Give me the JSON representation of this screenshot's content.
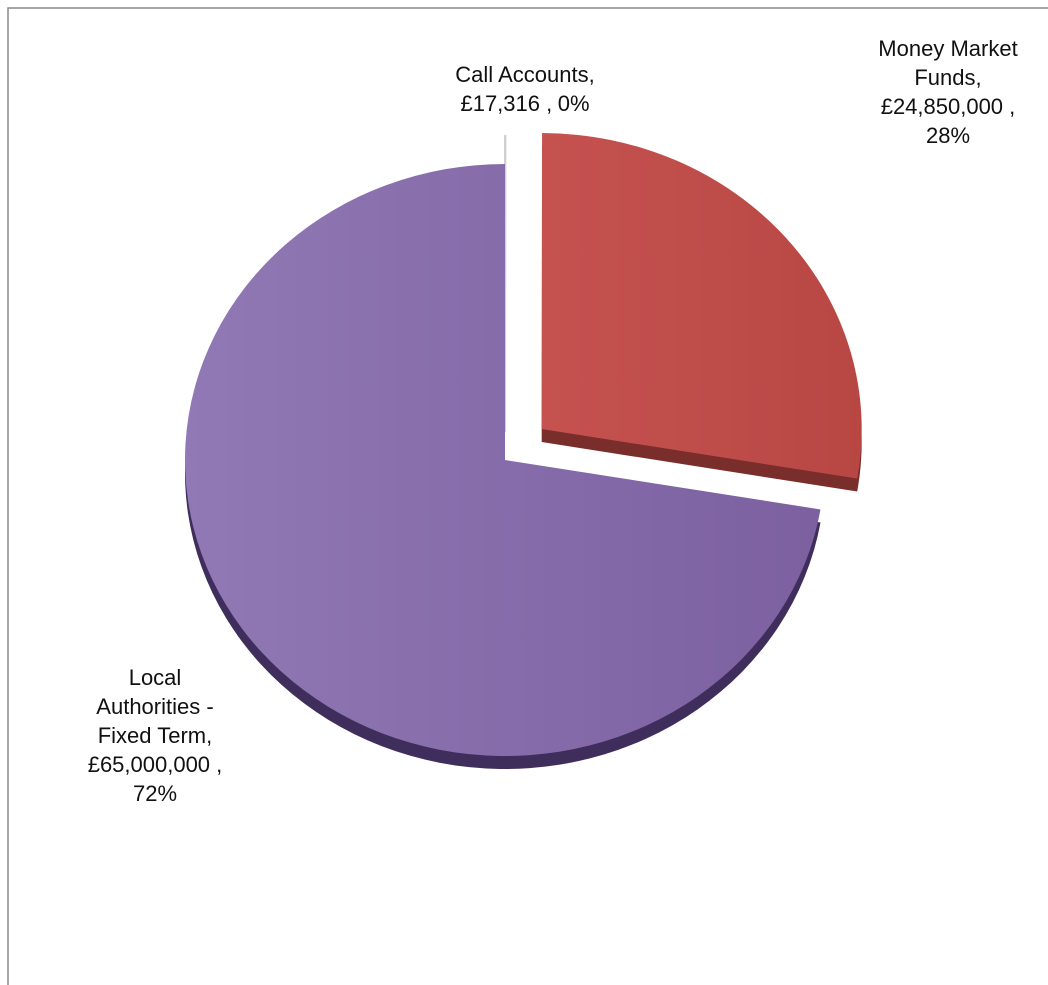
{
  "chart_data": {
    "type": "pie",
    "categories": [
      "Call Accounts,",
      "Money Market Funds,",
      "Local Authorities - Fixed Term,"
    ],
    "values": [
      17316,
      24850000,
      65000000
    ],
    "value_labels": [
      "£17,316 ,",
      "£24,850,000 ,",
      "£65,000,000 ,"
    ],
    "percents": [
      0,
      28,
      72
    ],
    "percent_labels": [
      "0%",
      "28%",
      "72%"
    ],
    "colors": [
      "#a5a5a5",
      "#c0504d",
      "#8064a2"
    ]
  }
}
